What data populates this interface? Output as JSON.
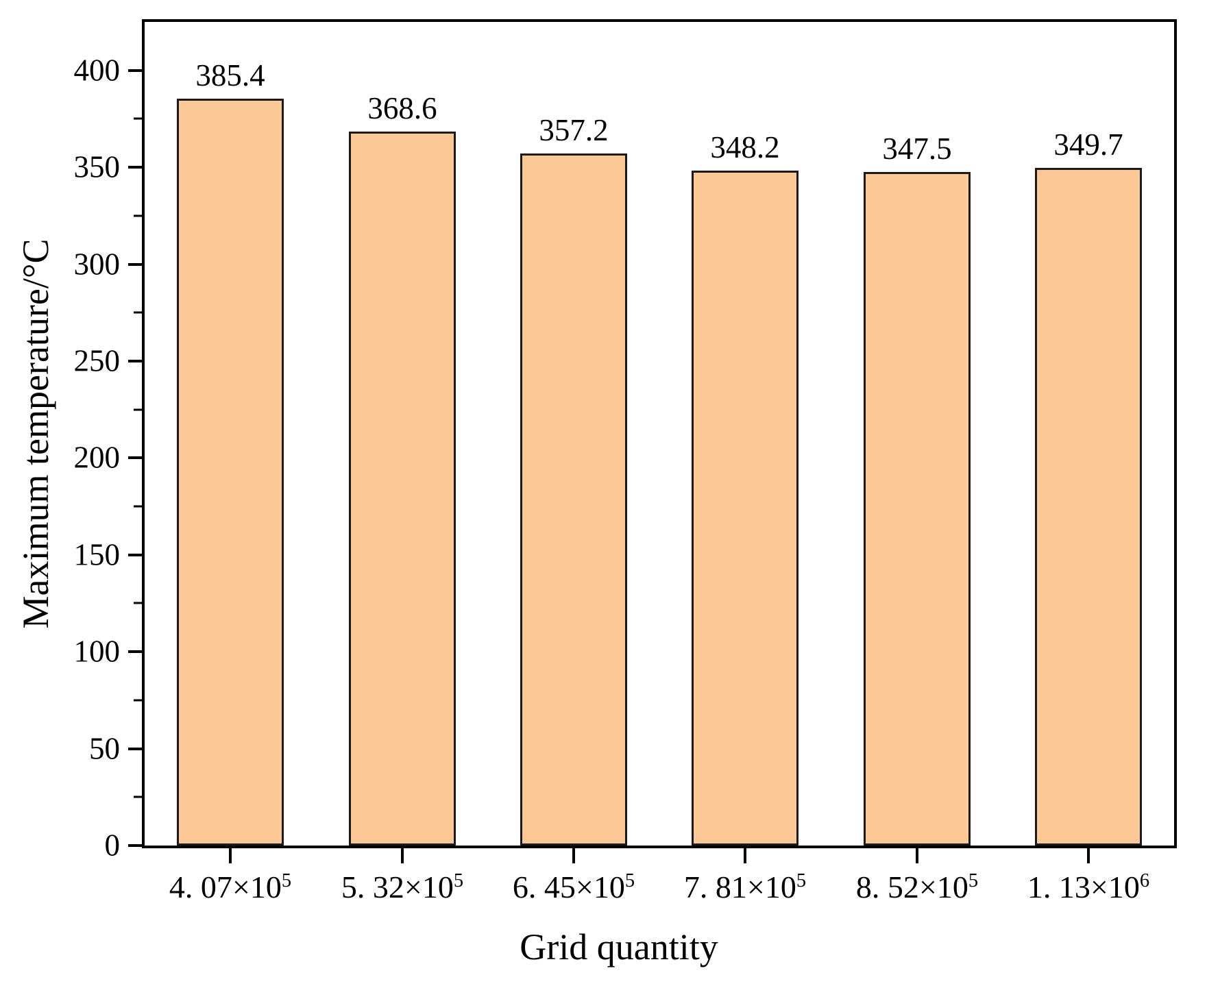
{
  "figure": {
    "background": "#ffffff"
  },
  "chart_data": {
    "type": "bar",
    "title": "",
    "xlabel": "Grid quantity",
    "ylabel": "Maximum temperature/°C",
    "categories": [
      "4. 07×10^5",
      "5. 32×10^5",
      "6. 45×10^5",
      "7. 81×10^5",
      "8. 52×10^5",
      "1. 13×10^6"
    ],
    "values": [
      385.4,
      368.6,
      357.2,
      348.2,
      347.5,
      349.7
    ],
    "value_label_decimals": 1,
    "ylim": [
      0,
      425
    ],
    "y_major_ticks": [
      0,
      50,
      100,
      150,
      200,
      250,
      300,
      350,
      400
    ],
    "y_minor_step": 25,
    "grid": false,
    "legend": null,
    "bar_color": "#FBC896",
    "bar_border_color": "#1A1A1A",
    "axis_color": "#000000",
    "text_color": "#000000"
  }
}
